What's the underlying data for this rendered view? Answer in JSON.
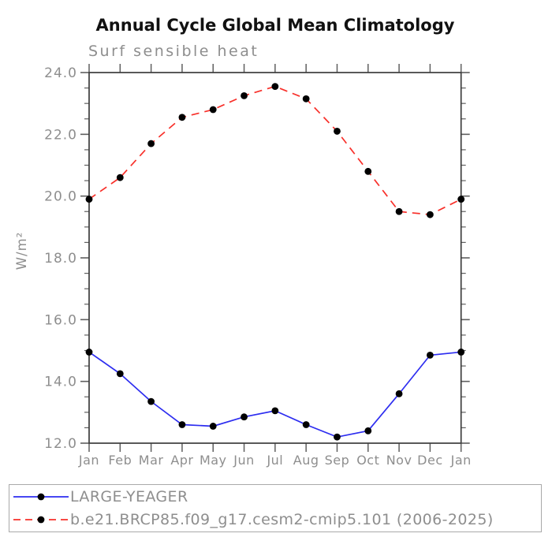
{
  "title": "Annual Cycle Global Mean Climatology",
  "subtitle": "Surf sensible heat",
  "chart_data": {
    "type": "line",
    "title": "Annual Cycle Global Mean Climatology",
    "subtitle": "Surf sensible heat",
    "xlabel": "",
    "ylabel": "W/m²",
    "categories": [
      "Jan",
      "Feb",
      "Mar",
      "Apr",
      "May",
      "Jun",
      "Jul",
      "Aug",
      "Sep",
      "Oct",
      "Nov",
      "Dec",
      "Jan"
    ],
    "ylim": [
      12.0,
      24.0
    ],
    "ytick_major": 2.0,
    "ytick_minor": 0.5,
    "ytick_labels": [
      "12.0",
      "14.0",
      "16.0",
      "18.0",
      "20.0",
      "22.0",
      "24.0"
    ],
    "grid": false,
    "legend_position": "bottom",
    "marker": "filled-circle",
    "marker_color": "#000000",
    "series": [
      {
        "name": "LARGE-YEAGER",
        "color": "#2d2df0",
        "style": "solid",
        "values": [
          14.95,
          14.25,
          13.35,
          12.6,
          12.55,
          12.85,
          13.05,
          12.6,
          12.2,
          12.4,
          13.6,
          14.85,
          14.95
        ]
      },
      {
        "name": "b.e21.BRCP85.f09_g17.cesm2-cmip5.101 (2006-2025)",
        "color": "#f8302a",
        "style": "dashed",
        "values": [
          19.9,
          20.6,
          21.7,
          22.55,
          22.8,
          23.25,
          23.55,
          23.15,
          22.1,
          20.8,
          19.5,
          19.4,
          19.9
        ]
      }
    ],
    "colors": {
      "axis_box": "#3c3c3c",
      "ticks": "#5f5f5f",
      "labels": "#8e8e8e",
      "title": "#111111"
    }
  }
}
